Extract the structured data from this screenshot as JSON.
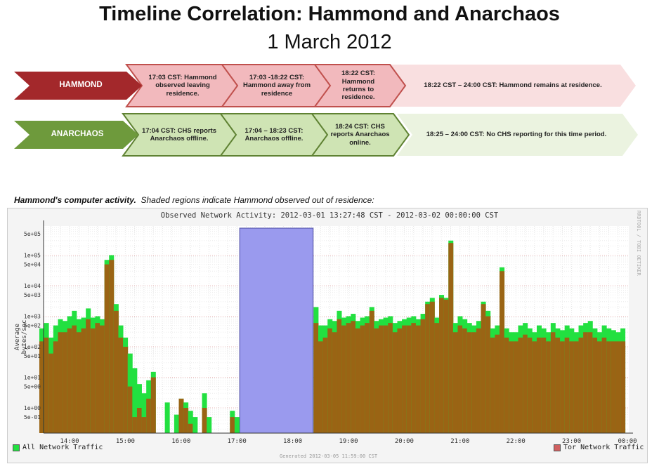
{
  "header": {
    "title": "Timeline Correlation: Hammond and Anarchaos",
    "subtitle": "1 March 2012"
  },
  "timeline": {
    "rows": [
      {
        "label": "HAMMOND",
        "color": "#a3282b",
        "fill": "#f2b9bd",
        "light": "#f9dfe0",
        "stroke": "#c0504d",
        "events": [
          "17:03 CST: Hammond observed leaving residence.",
          "17:03 -18:22 CST: Hammond away from residence",
          "18:22 CST: Hammond returns to residence.",
          "18:22 CST – 24:00 CST: Hammond remains at residence."
        ]
      },
      {
        "label": "ANARCHAOS",
        "color": "#6e9a3c",
        "fill": "#cfe4b4",
        "light": "#ebf3e0",
        "stroke": "#5f8233",
        "events": [
          "17:04 CST: CHS reports Anarchaos offline.",
          "17:04 – 18:23 CST: Anarchaos offline.",
          "18:24 CST: CHS reports Anarchaos online.",
          "18:25 – 24:00 CST: No CHS reporting for this time period."
        ]
      }
    ]
  },
  "caption": {
    "bold": "Hammond's computer activity.",
    "rest": "Shaded regions indicate Hammond observed out of residence:"
  },
  "chart_data": {
    "type": "area",
    "title": "Observed Network Activity: 2012-03-01 13:27:48 CST - 2012-03-02 00:00:00 CST",
    "ylabel": "Average bytes/sec",
    "yscale": "log",
    "ylim": [
      0.15,
      700000
    ],
    "xlim": [
      "13:27:48",
      "00:00"
    ],
    "x_ticks": [
      "14:00",
      "15:00",
      "16:00",
      "17:00",
      "18:00",
      "19:00",
      "20:00",
      "21:00",
      "22:00",
      "23:00",
      "00:00"
    ],
    "y_ticks": [
      "5e+05",
      "1e+05",
      "5e+04",
      "1e+04",
      "5e+03",
      "1e+03",
      "5e+02",
      "1e+02",
      "5e+01",
      "1e+01",
      "5e+00",
      "1e+00",
      "5e-01"
    ],
    "grid": true,
    "legend": "bottom",
    "shaded_region": {
      "from": "17:03",
      "to": "18:22",
      "color": "#9a9aee"
    },
    "series": [
      {
        "name": "All Network Traffic",
        "color": "#22e040"
      },
      {
        "name": "Tor Network Traffic",
        "color": "#9a6414",
        "legend_color": "#d06060"
      }
    ],
    "x": [
      "13:30",
      "13:35",
      "13:40",
      "13:45",
      "13:50",
      "13:55",
      "14:00",
      "14:05",
      "14:10",
      "14:15",
      "14:20",
      "14:25",
      "14:30",
      "14:35",
      "14:40",
      "14:45",
      "14:50",
      "14:55",
      "15:00",
      "15:05",
      "15:10",
      "15:15",
      "15:20",
      "15:25",
      "15:30",
      "15:35",
      "15:40",
      "15:45",
      "15:50",
      "15:55",
      "16:00",
      "16:05",
      "16:10",
      "16:15",
      "16:20",
      "16:25",
      "16:30",
      "16:35",
      "16:40",
      "16:45",
      "16:50",
      "16:55",
      "17:00",
      "17:05",
      "18:25",
      "18:30",
      "18:35",
      "18:40",
      "18:45",
      "18:50",
      "18:55",
      "19:00",
      "19:05",
      "19:10",
      "19:15",
      "19:20",
      "19:25",
      "19:30",
      "19:35",
      "19:40",
      "19:45",
      "19:50",
      "19:55",
      "20:00",
      "20:05",
      "20:10",
      "20:15",
      "20:20",
      "20:25",
      "20:30",
      "20:35",
      "20:40",
      "20:45",
      "20:50",
      "20:55",
      "21:00",
      "21:05",
      "21:10",
      "21:15",
      "21:20",
      "21:25",
      "21:30",
      "21:35",
      "21:40",
      "21:45",
      "21:50",
      "21:55",
      "22:00",
      "22:05",
      "22:10",
      "22:15",
      "22:20",
      "22:25",
      "22:30",
      "22:35",
      "22:40",
      "22:45",
      "22:50",
      "22:55",
      "23:00",
      "23:05",
      "23:10",
      "23:15",
      "23:20",
      "23:25",
      "23:30",
      "23:35",
      "23:40",
      "23:45",
      "23:50",
      "23:55"
    ],
    "all": [
      400,
      600,
      200,
      500,
      800,
      700,
      1000,
      1500,
      800,
      900,
      1800,
      900,
      1000,
      800,
      70000,
      100000,
      2500,
      500,
      200,
      60,
      20,
      6,
      3,
      8,
      15,
      null,
      null,
      1.5,
      null,
      0.6,
      2,
      1.5,
      0.8,
      0.5,
      null,
      3,
      0.5,
      null,
      null,
      null,
      null,
      0.8,
      0.5,
      null,
      2000,
      500,
      500,
      800,
      700,
      1500,
      900,
      1000,
      1200,
      700,
      900,
      1000,
      2000,
      700,
      800,
      900,
      1000,
      600,
      700,
      800,
      900,
      1000,
      800,
      1200,
      3000,
      4000,
      900,
      5000,
      4000,
      300000,
      600,
      1000,
      800,
      600,
      500,
      700,
      3000,
      1500,
      400,
      500,
      40000,
      400,
      300,
      300,
      500,
      600,
      400,
      300,
      500,
      400,
      300,
      600,
      400,
      350,
      500,
      400,
      300,
      500,
      600,
      700,
      400,
      300,
      500,
      400,
      350,
      300,
      400
    ],
    "tor": [
      150,
      200,
      60,
      150,
      300,
      300,
      400,
      500,
      300,
      400,
      800,
      400,
      600,
      500,
      50000,
      70000,
      1500,
      200,
      100,
      5,
      0.5,
      1,
      0.5,
      2,
      10,
      null,
      null,
      null,
      null,
      null,
      2,
      1,
      0.3,
      null,
      null,
      1,
      null,
      null,
      null,
      null,
      null,
      0.5,
      null,
      null,
      600,
      150,
      200,
      400,
      300,
      800,
      500,
      600,
      700,
      400,
      500,
      600,
      1500,
      400,
      500,
      500,
      600,
      300,
      400,
      500,
      500,
      600,
      500,
      800,
      2500,
      3000,
      600,
      4000,
      3500,
      250000,
      300,
      500,
      400,
      300,
      300,
      400,
      2500,
      1000,
      200,
      250,
      30000,
      200,
      150,
      150,
      200,
      250,
      200,
      150,
      200,
      200,
      150,
      300,
      200,
      150,
      200,
      150,
      150,
      200,
      300,
      300,
      200,
      150,
      200,
      150,
      150,
      150,
      150
    ]
  },
  "chart_meta": {
    "watermark": "RRDTOOL / TOBI OETIKER",
    "generated": "Generated 2012-03-05 11:59:00 CST"
  }
}
